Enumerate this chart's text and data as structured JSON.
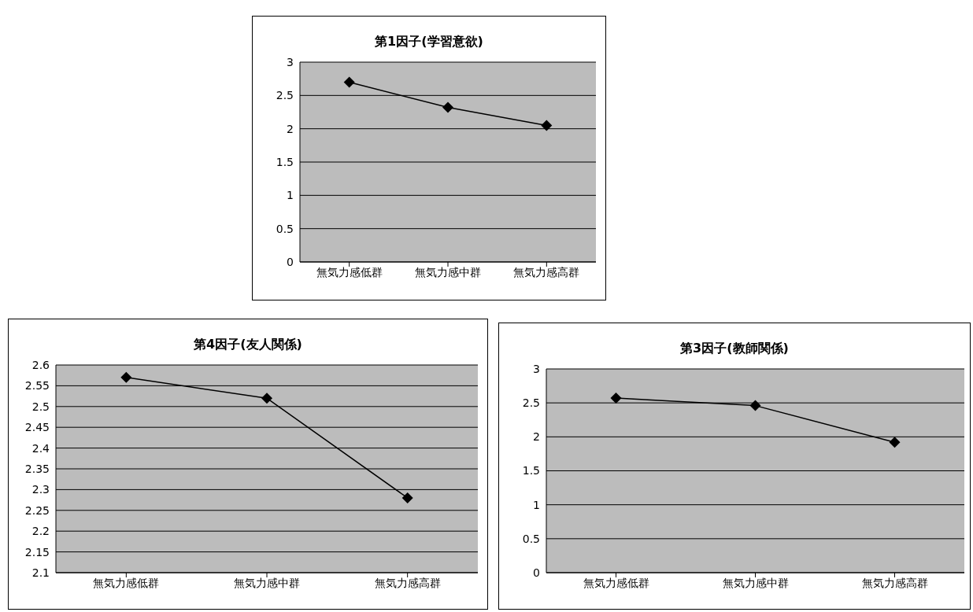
{
  "chart_data": [
    {
      "type": "line",
      "title": "第1因子(学習意欲)",
      "categories": [
        "無気力感低群",
        "無気力感中群",
        "無気力感高群"
      ],
      "series": [
        {
          "color": "#000000",
          "values": [
            2.7,
            2.32,
            2.05
          ]
        }
      ],
      "ylim": [
        0,
        3
      ],
      "yticks": [
        0,
        0.5,
        1,
        1.5,
        2,
        2.5,
        3
      ],
      "grid": "y",
      "marker": "diamond",
      "legend": false
    },
    {
      "type": "line",
      "title": "第4因子(友人関係)",
      "categories": [
        "無気力感低群",
        "無気力感中群",
        "無気力感高群"
      ],
      "series": [
        {
          "color": "#000000",
          "values": [
            2.57,
            2.52,
            2.28
          ]
        }
      ],
      "ylim": [
        2.1,
        2.6
      ],
      "yticks": [
        2.1,
        2.15,
        2.2,
        2.25,
        2.3,
        2.35,
        2.4,
        2.45,
        2.5,
        2.55,
        2.6
      ],
      "grid": "y",
      "marker": "diamond",
      "legend": false
    },
    {
      "type": "line",
      "title": "第3因子(教師関係)",
      "categories": [
        "無気力感低群",
        "無気力感中群",
        "無気力感高群"
      ],
      "series": [
        {
          "color": "#000000",
          "values": [
            2.57,
            2.46,
            1.92
          ]
        }
      ],
      "ylim": [
        0,
        3
      ],
      "yticks": [
        0,
        0.5,
        1,
        1.5,
        2,
        2.5,
        3
      ],
      "grid": "y",
      "marker": "diamond",
      "legend": false
    }
  ]
}
